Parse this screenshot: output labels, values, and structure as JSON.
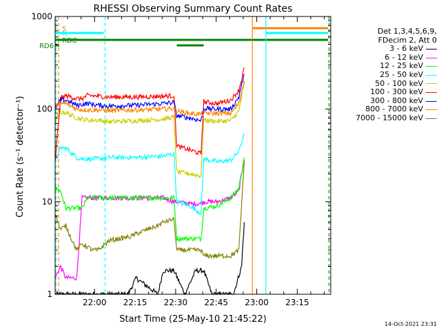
{
  "chart_data": {
    "type": "line",
    "title": "RHESSI Observing Summary Count Rates",
    "xlabel": "Start Time (25-May-10 21:45:22)",
    "ylabel": "Count Rate (s⁻¹ detector⁻¹)",
    "yscale": "log",
    "ylim": [
      1,
      1000
    ],
    "xlim_minutes": [
      0,
      102
    ],
    "x_ticks": [
      {
        "label": "22:00",
        "minutes": 14.6
      },
      {
        "label": "22:15",
        "minutes": 29.6
      },
      {
        "label": "22:30",
        "minutes": 44.6
      },
      {
        "label": "22:45",
        "minutes": 59.6
      },
      {
        "label": "23:00",
        "minutes": 74.6
      },
      {
        "label": "23:15",
        "minutes": 89.6
      }
    ],
    "y_ticks": [
      {
        "label": "1",
        "value": 1
      },
      {
        "label": "10",
        "value": 10
      },
      {
        "label": "100",
        "value": 100
      },
      {
        "label": "1000",
        "value": 1000
      }
    ],
    "legend_header": [
      "Det 1,3,4,5,6,9,",
      "FDecim 2, Att 0"
    ],
    "legend_position": "right",
    "series": [
      {
        "name": "3 - 6 keV",
        "color": "#000000",
        "x": [
          0,
          10,
          20,
          27,
          30,
          38,
          40,
          44,
          48,
          52,
          55,
          58,
          62,
          66,
          69,
          70
        ],
        "y": [
          1,
          1,
          1,
          1,
          1.5,
          1,
          1.8,
          1.8,
          1,
          1.8,
          1.8,
          1,
          1,
          1,
          2,
          6
        ]
      },
      {
        "name": "6 - 12 keV",
        "color": "#ff00ff",
        "x": [
          0,
          2,
          4,
          8,
          10,
          12,
          16,
          20,
          30,
          40,
          44,
          45,
          50,
          54,
          55,
          60,
          65,
          68,
          70
        ],
        "y": [
          1.5,
          2,
          1.5,
          1.5,
          11,
          11,
          11,
          11,
          11,
          11,
          10,
          10,
          9.5,
          9.5,
          10,
          10,
          11,
          13,
          30
        ]
      },
      {
        "name": "12 - 25 keV",
        "color": "#00ff00",
        "x": [
          0,
          2,
          4,
          8,
          10,
          12,
          16,
          20,
          30,
          40,
          44,
          45,
          50,
          54,
          55,
          60,
          65,
          68,
          70
        ],
        "y": [
          14,
          13,
          8.5,
          8.5,
          8.5,
          11,
          11,
          11,
          11,
          11,
          11,
          4,
          4,
          4,
          8.5,
          9,
          11,
          14,
          30
        ]
      },
      {
        "name": "25 - 50 keV",
        "color": "#00ffff",
        "x": [
          0,
          2,
          4,
          8,
          10,
          16,
          20,
          30,
          40,
          44,
          45,
          50,
          54,
          55,
          60,
          65,
          68,
          70
        ],
        "y": [
          28,
          38,
          38,
          30,
          29,
          29,
          30,
          30,
          31,
          33,
          10,
          9,
          7.5,
          29,
          27,
          28,
          35,
          55
        ]
      },
      {
        "name": "50 - 100 keV",
        "color": "#cccc00",
        "x": [
          0,
          2,
          4,
          8,
          12,
          16,
          20,
          30,
          40,
          44,
          45,
          50,
          54,
          55,
          60,
          65,
          68,
          70
        ],
        "y": [
          75,
          92,
          92,
          80,
          76,
          76,
          73,
          75,
          78,
          82,
          21,
          20,
          19,
          76,
          74,
          75,
          95,
          200
        ]
      },
      {
        "name": "100 - 300 keV",
        "color": "#ff0000",
        "x": [
          0,
          2,
          4,
          8,
          10,
          12,
          16,
          20,
          30,
          40,
          44,
          45,
          50,
          54,
          55,
          60,
          65,
          68,
          70
        ],
        "y": [
          27,
          130,
          140,
          130,
          130,
          140,
          138,
          135,
          135,
          138,
          140,
          40,
          36,
          33,
          120,
          115,
          125,
          160,
          280
        ]
      },
      {
        "name": "300 - 800 keV",
        "color": "#0000ff",
        "x": [
          0,
          2,
          4,
          8,
          12,
          16,
          20,
          30,
          40,
          44,
          45,
          50,
          54,
          55,
          60,
          65,
          68,
          70
        ],
        "y": [
          100,
          125,
          125,
          110,
          115,
          110,
          108,
          110,
          115,
          118,
          85,
          80,
          75,
          102,
          100,
          100,
          135,
          240
        ]
      },
      {
        "name": "800 - 7000 keV",
        "color": "#ff8000",
        "x": [
          0,
          2,
          4,
          8,
          12,
          16,
          20,
          30,
          40,
          44,
          45,
          50,
          54,
          55,
          60,
          65,
          68,
          70
        ],
        "y": [
          110,
          115,
          115,
          100,
          98,
          98,
          96,
          98,
          100,
          102,
          95,
          90,
          88,
          90,
          90,
          90,
          115,
          200
        ]
      },
      {
        "name": "7000 - 15000 keV",
        "color": "#808000",
        "x": [
          0,
          2,
          4,
          6,
          8,
          10,
          14,
          16,
          20,
          24,
          28,
          30,
          34,
          38,
          40,
          44,
          45,
          50,
          54,
          55,
          60,
          65,
          68,
          70
        ],
        "y": [
          7.5,
          5,
          5.5,
          4,
          3,
          3.5,
          3,
          3,
          3.8,
          4,
          4.2,
          4.5,
          5,
          5.5,
          6,
          6.5,
          3,
          3,
          3,
          2.6,
          2.6,
          2.6,
          3,
          28
        ]
      }
    ],
    "flag_bars": [
      {
        "label": "S",
        "color": "#ff8000",
        "segments": [
          [
            0,
            0.5
          ],
          [
            73,
            101
          ]
        ]
      },
      {
        "label": "N",
        "color": "#00ffff",
        "segments": [
          [
            0,
            18
          ],
          [
            78,
            101
          ]
        ]
      },
      {
        "label": "RDC",
        "color": "#008000",
        "segments": [
          [
            0,
            45
          ],
          [
            45,
            55
          ],
          [
            55,
            101
          ]
        ]
      },
      {
        "label": "RD6",
        "color": "#008000",
        "segments": [
          [
            0,
            1.5
          ],
          [
            45,
            55
          ]
        ]
      }
    ],
    "vertical_markers": [
      {
        "minutes": 0.3,
        "color": "#00ffff",
        "style": "dashed"
      },
      {
        "minutes": 1.3,
        "color": "#ff8000",
        "style": "dashed"
      },
      {
        "minutes": 18.5,
        "color": "#00ffff",
        "style": "dashed"
      },
      {
        "minutes": 73,
        "color": "#ff8000",
        "style": "solid"
      },
      {
        "minutes": 78,
        "color": "#00ffff",
        "style": "solid"
      },
      {
        "minutes": 101.2,
        "color": "#00ffff",
        "style": "dashed"
      },
      {
        "minutes": 101.5,
        "color": "#ff8000",
        "style": "dashed"
      }
    ]
  },
  "timestamp": "14-Oct-2021 23:31"
}
